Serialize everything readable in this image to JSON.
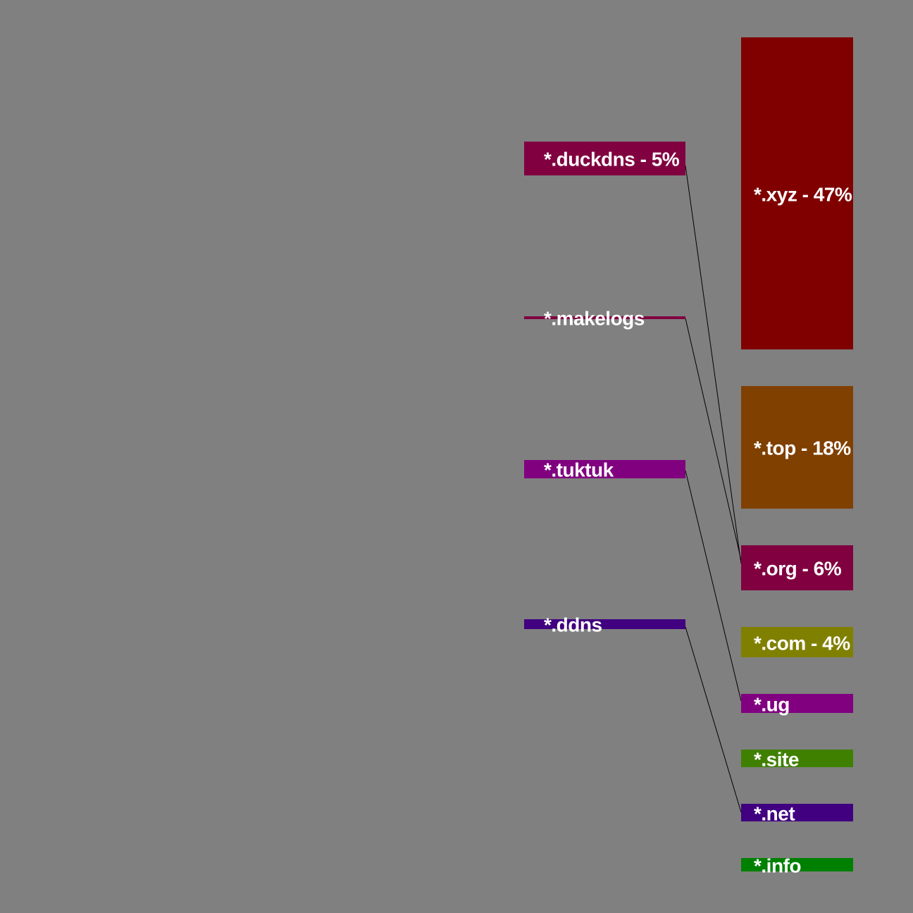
{
  "diagram": {
    "background": "#808080",
    "left_nodes": [
      {
        "id": "duckdns",
        "label": "*.duckdns - 5%",
        "color": "#800040"
      },
      {
        "id": "makelogs",
        "label": "*.makelogs",
        "color": "#800040"
      },
      {
        "id": "tuktuk",
        "label": "*.tuktuk",
        "color": "#800080"
      },
      {
        "id": "ddns",
        "label": "*.ddns",
        "color": "#400080"
      }
    ],
    "right_nodes": [
      {
        "id": "xyz",
        "label": "*.xyz - 47%",
        "color": "#800000"
      },
      {
        "id": "top",
        "label": "*.top - 18%",
        "color": "#804000"
      },
      {
        "id": "org",
        "label": "*.org - 6%",
        "color": "#800040"
      },
      {
        "id": "com",
        "label": "*.com - 4%",
        "color": "#808000"
      },
      {
        "id": "ug",
        "label": "*.ug",
        "color": "#800080"
      },
      {
        "id": "site",
        "label": "*.site",
        "color": "#408000"
      },
      {
        "id": "net",
        "label": "*.net",
        "color": "#400080"
      },
      {
        "id": "info",
        "label": "*.info",
        "color": "#008000"
      }
    ],
    "links": [
      {
        "from": "duckdns",
        "to": "org"
      },
      {
        "from": "makelogs",
        "to": "org"
      },
      {
        "from": "tuktuk",
        "to": "ug"
      },
      {
        "from": "ddns",
        "to": "net"
      }
    ]
  }
}
